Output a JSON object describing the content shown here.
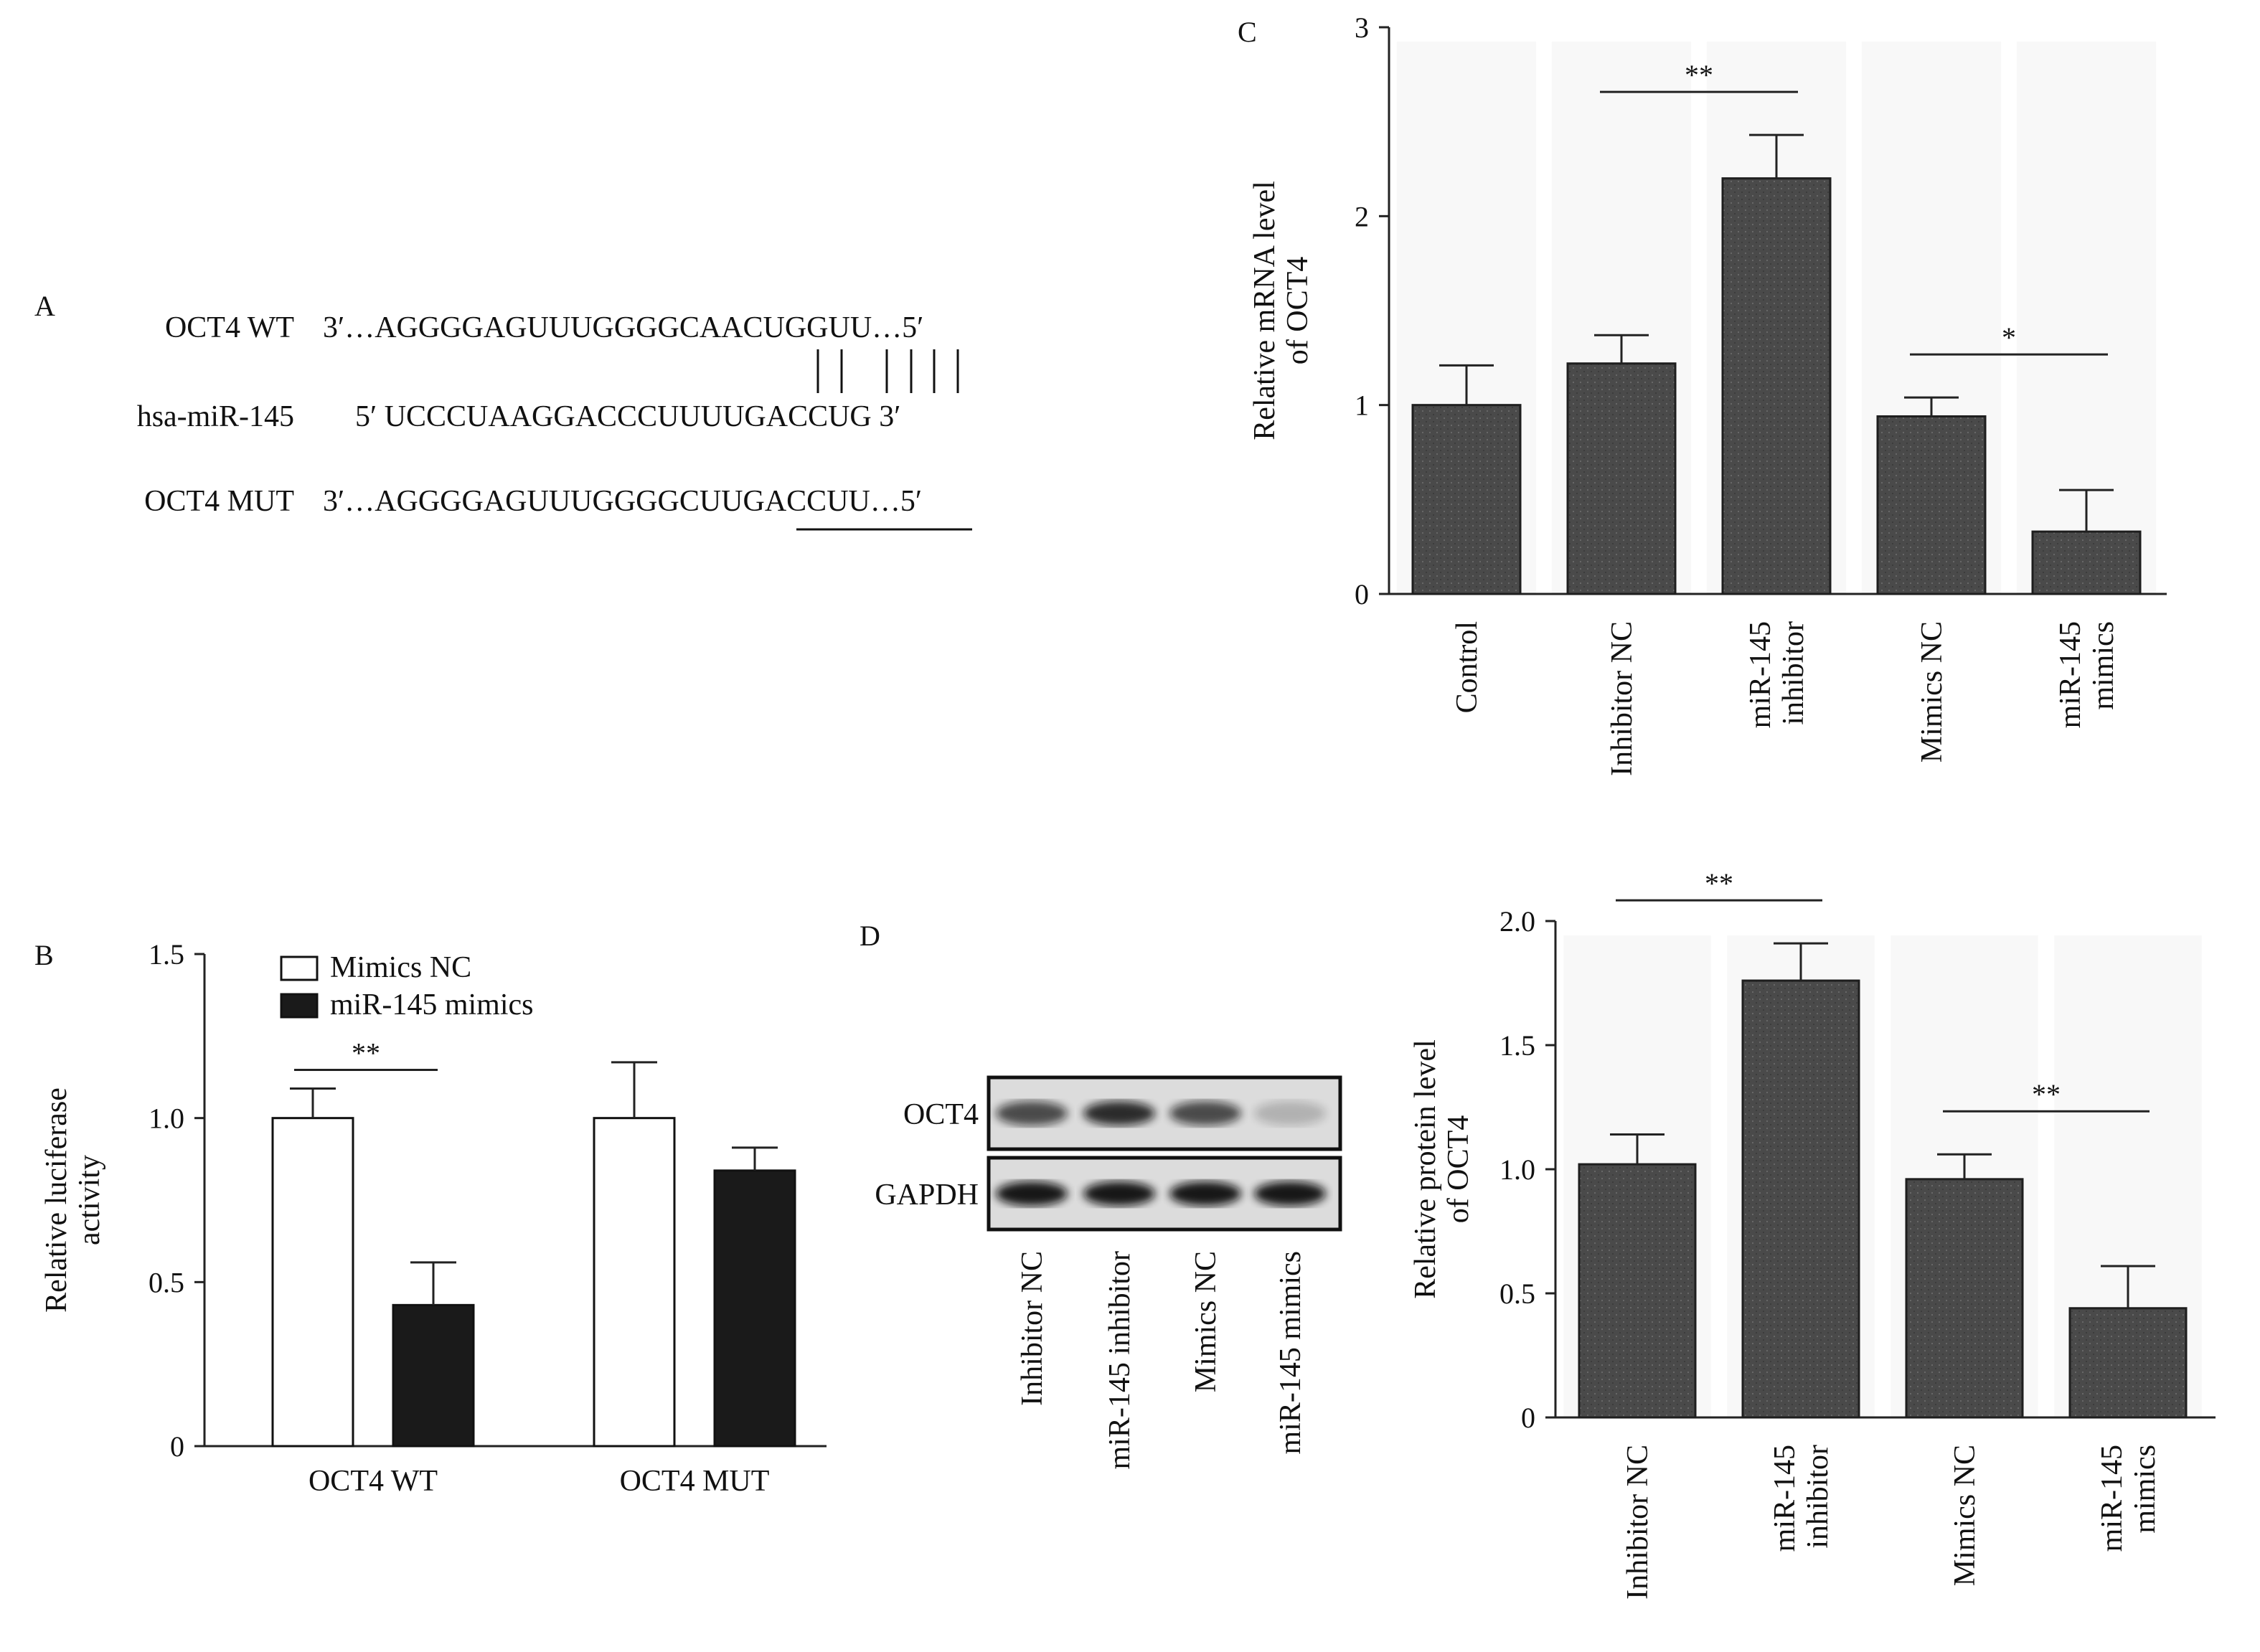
{
  "panel_letters": {
    "a": "A",
    "b": "B",
    "c": "C",
    "d": "D"
  },
  "panel_a": {
    "wt_label": "OCT4 WT",
    "wt_seq": "3′…AGGGGAGUUUGGGGCAACUGGUU…5′",
    "mir_label": "hsa-miR-145",
    "mir_seq": "5′ UCCCUAAGGACCCUUUUGACCUG 3′",
    "mut_label": "OCT4 MUT",
    "mut_seq": "3′…AGGGGAGUUUGGGGCUUGACCUU…5′"
  },
  "panel_d_blot": {
    "rows": [
      "OCT4",
      "GAPDH"
    ],
    "lanes": [
      "Inhibitor NC",
      "miR-145 inhibitor",
      "Mimics NC",
      "miR-145 mimics"
    ],
    "oct4_intensity": [
      0.7,
      0.85,
      0.7,
      0.2
    ],
    "gapdh_intensity": [
      0.95,
      0.95,
      0.95,
      0.95
    ]
  },
  "colors": {
    "bar_gray": "#4a4a4a",
    "bar_black": "#1a1a1a",
    "bar_white": "#ffffff",
    "axis": "#222222"
  },
  "chart_data": [
    {
      "id": "B",
      "type": "bar",
      "categories": [
        "OCT4 WT",
        "OCT4 MUT"
      ],
      "series": [
        {
          "name": "Mimics NC",
          "values": [
            1.0,
            1.0
          ],
          "errors": [
            0.09,
            0.17
          ],
          "color": "#ffffff"
        },
        {
          "name": "miR-145 mimics",
          "values": [
            0.43,
            0.84
          ],
          "errors": [
            0.13,
            0.07
          ],
          "color": "#1a1a1a"
        }
      ],
      "ylabel_lines": [
        "Relative luciferase",
        "activity"
      ],
      "ylim": [
        0,
        1.5
      ],
      "yticks": [
        "0",
        "0.5",
        "1.0",
        "1.5"
      ],
      "legend_position": "top-left",
      "significance": [
        {
          "category": "OCT4 WT",
          "label": "**"
        }
      ]
    },
    {
      "id": "C",
      "type": "bar",
      "categories": [
        "Control",
        "Inhibitor NC",
        "miR-145 inhibitor",
        "Mimics NC",
        "miR-145 mimics"
      ],
      "category_lines": [
        [
          "Control"
        ],
        [
          "Inhibitor NC"
        ],
        [
          "miR-145",
          "inhibitor"
        ],
        [
          "Mimics NC"
        ],
        [
          "miR-145",
          "mimics"
        ]
      ],
      "values": [
        1.0,
        1.22,
        2.2,
        0.94,
        0.33
      ],
      "errors": [
        0.21,
        0.15,
        0.23,
        0.1,
        0.22
      ],
      "ylabel_lines": [
        "Relative mRNA level",
        "of OCT4"
      ],
      "ylim": [
        0,
        3
      ],
      "yticks": [
        "0",
        "1",
        "2",
        "3"
      ],
      "significance": [
        {
          "from": 1,
          "to": 2,
          "label": "**"
        },
        {
          "from": 3,
          "to": 4,
          "label": "*"
        }
      ]
    },
    {
      "id": "D",
      "type": "bar",
      "categories": [
        "Inhibitor NC",
        "miR-145 inhibitor",
        "Mimics NC",
        "miR-145 mimics"
      ],
      "category_lines": [
        [
          "Inhibitor NC"
        ],
        [
          "miR-145",
          "inhibitor"
        ],
        [
          "Mimics NC"
        ],
        [
          "miR-145",
          "mimics"
        ]
      ],
      "values": [
        1.02,
        1.76,
        0.96,
        0.44
      ],
      "errors": [
        0.12,
        0.15,
        0.1,
        0.17
      ],
      "ylabel_lines": [
        "Relative protein level",
        "of OCT4"
      ],
      "ylim": [
        0,
        2.0
      ],
      "yticks": [
        "0",
        "0.5",
        "1.0",
        "1.5",
        "2.0"
      ],
      "significance": [
        {
          "from": 0,
          "to": 1,
          "label": "**"
        },
        {
          "from": 2,
          "to": 3,
          "label": "**"
        }
      ]
    }
  ]
}
